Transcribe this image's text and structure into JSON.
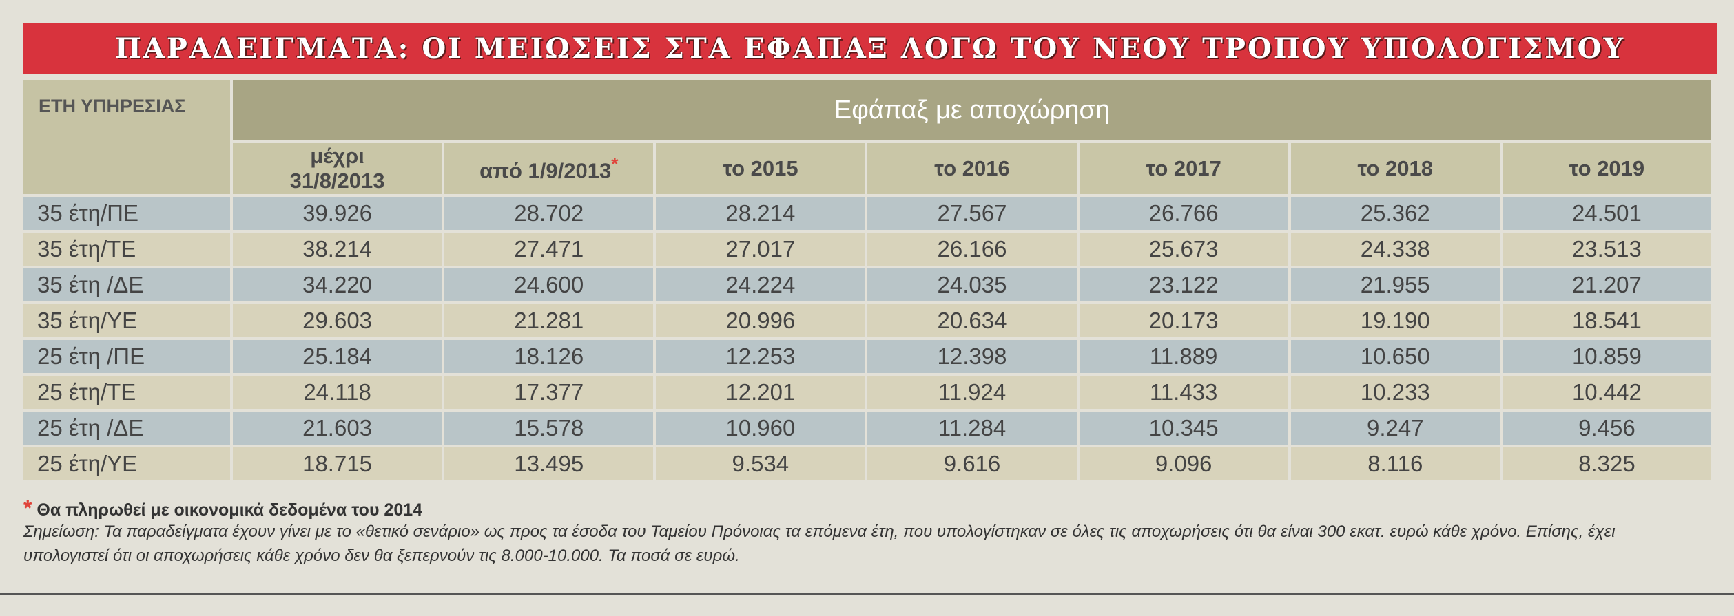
{
  "title": "ΠΑΡΑΔΕΙΓΜΑΤΑ: ΟΙ ΜΕΙΩΣΕΙΣ ΣΤΑ ΕΦΑΠΑΞ ΛΟΓΩ ΤΟΥ ΝΕΟΥ ΤΡΟΠΟΥ ΥΠΟΛΟΓΙΣΜΟΥ",
  "table": {
    "row_header": "ΕΤΗ ΥΠΗΡΕΣΙΑΣ",
    "group_header": "Εφάπαξ με αποχώρηση",
    "columns": [
      "μέχρι 31/8/2013",
      "από 1/9/2013",
      "το 2015",
      "το 2016",
      "το 2017",
      "το 2018",
      "το 2019"
    ],
    "asterisk": "*",
    "rows": [
      {
        "label": "35 έτη/ΠΕ",
        "values": [
          "39.926",
          "28.702",
          "28.214",
          "27.567",
          "26.766",
          "25.362",
          "24.501"
        ]
      },
      {
        "label": "35 έτη/ΤΕ",
        "values": [
          "38.214",
          "27.471",
          "27.017",
          "26.166",
          "25.673",
          "24.338",
          "23.513"
        ]
      },
      {
        "label": "35 έτη /ΔΕ",
        "values": [
          "34.220",
          "24.600",
          "24.224",
          "24.035",
          "23.122",
          "21.955",
          "21.207"
        ]
      },
      {
        "label": "35 έτη/ΥΕ",
        "values": [
          "29.603",
          "21.281",
          "20.996",
          "20.634",
          "20.173",
          "19.190",
          "18.541"
        ]
      },
      {
        "label": "25 έτη /ΠΕ",
        "values": [
          "25.184",
          "18.126",
          "12.253",
          "12.398",
          "11.889",
          "10.650",
          "10.859"
        ]
      },
      {
        "label": "25 έτη/ΤΕ",
        "values": [
          "24.118",
          "17.377",
          "12.201",
          "11.924",
          "11.433",
          "10.233",
          "10.442"
        ]
      },
      {
        "label": "25 έτη /ΔΕ",
        "values": [
          "21.603",
          "15.578",
          "10.960",
          "11.284",
          "10.345",
          "9.247",
          "9.456"
        ]
      },
      {
        "label": "25 έτη/ΥΕ",
        "values": [
          "18.715",
          "13.495",
          "9.534",
          "9.616",
          "9.096",
          "8.116",
          "8.325"
        ]
      }
    ]
  },
  "footnote_star": "Θα πληρωθεί με οικονομικά δεδομένα του 2014",
  "note": "Σημείωση: Τα παραδείγματα έχουν γίνει με το «θετικό σενάριο» ως προς τα έσοδα του Ταμείου Πρόνοιας τα επόμενα έτη, που υπολογίστηκαν σε όλες τις αποχωρήσεις ότι θα είναι 300 εκατ. ευρώ κάθε χρόνο. Επίσης, έχει υπολογιστεί ότι οι αποχωρήσεις κάθε χρόνο δεν θα ξεπερνούν τις 8.000-10.000. Τα ποσά σε ευρώ.",
  "colors": {
    "title_bg": "#d8333d",
    "header_bg": "#a8a584",
    "row_blue": "#b9c5c8",
    "row_beige": "#d8d3bb",
    "asterisk": "#e0443b"
  }
}
